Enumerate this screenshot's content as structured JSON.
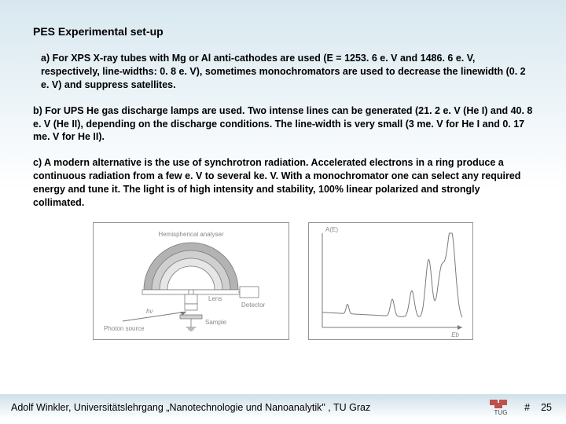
{
  "title": "PES Experimental set-up",
  "paragraphs": {
    "a": "a) For XPS X-ray tubes with Mg or Al anti-cathodes are used (E = 1253. 6 e. V and 1486. 6 e. V, respectively, line-widths: 0. 8 e. V), sometimes monochromators are used to decrease the linewidth (0. 2 e. V) and suppress satellites.",
    "b": "b) For UPS He gas discharge lamps are used. Two intense lines can be generated (21. 2 e. V (He I) and 40. 8 e. V (He II), depending on the discharge conditions. The line-width is very small (3 me. V for He I and 0. 17 me. V for He II).",
    "c": "c) A modern alternative is the use of synchrotron radiation.  Accelerated electrons in a ring produce a continuous radiation from a few e. V to several ke. V. With a monochromator one can select any required energy and tune it. The light is of high intensity and stability, 100% linear polarized and strongly collimated."
  },
  "diagram_left": {
    "type": "diagram",
    "labels": {
      "analyser": "Hemispherical analyser",
      "lens": "Lens",
      "detector": "Detector",
      "source": "Photon source",
      "sample": "Sample",
      "hv": "hν"
    },
    "colors": {
      "stroke": "#7a7a7a",
      "fill_light": "#e6e6e6",
      "fill_mid": "#cfcfcf",
      "fill_dark": "#b3b3b3",
      "text": "#888888"
    }
  },
  "diagram_right": {
    "type": "line",
    "label_top": "A(E)",
    "axis_x": "Eb",
    "colors": {
      "stroke": "#7a7a7a",
      "text": "#888888"
    },
    "peaks_x": [
      0.18,
      0.5,
      0.64,
      0.76,
      0.85,
      0.92
    ],
    "peaks_h": [
      0.1,
      0.18,
      0.28,
      0.62,
      0.5,
      0.95
    ],
    "baseline": 0.06,
    "drift_start": 0.25,
    "drift_end": 0.05
  },
  "footer": {
    "text": "Adolf Winkler, Universitätslehrgang „Nanotechnologie und Nanoanalytik\" , TU Graz",
    "hash": "#",
    "page": "25",
    "logo_label": "TUG",
    "logo_color": "#c0504d"
  }
}
